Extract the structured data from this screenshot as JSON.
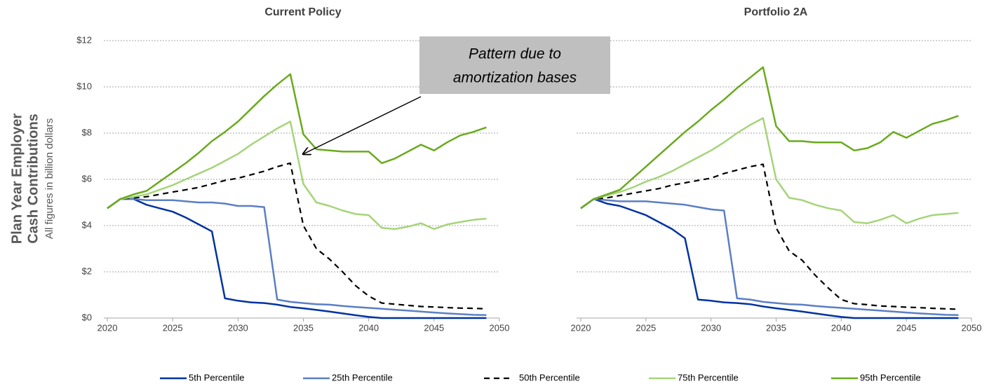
{
  "chart_data": [
    {
      "type": "line",
      "title": "Current Policy",
      "ylabel": [
        "Plan Year Employer",
        "Cash Contributions"
      ],
      "ylabel_note": "All figures in billion dollars",
      "annotation": [
        "Pattern due to",
        "amortization bases"
      ],
      "x": [
        2020,
        2021,
        2022,
        2023,
        2024,
        2025,
        2026,
        2027,
        2028,
        2029,
        2030,
        2031,
        2032,
        2033,
        2034,
        2035,
        2036,
        2037,
        2038,
        2039,
        2040,
        2041,
        2042,
        2043,
        2044,
        2045,
        2046,
        2047,
        2048,
        2049
      ],
      "xlim": [
        2020,
        2050
      ],
      "xticks": [
        2020,
        2025,
        2030,
        2035,
        2040,
        2045,
        2050
      ],
      "ylim": [
        0,
        12
      ],
      "yticks": [
        {
          "value": 0,
          "label": "$0"
        },
        {
          "value": 2,
          "label": "$2"
        },
        {
          "value": 4,
          "label": "$4"
        },
        {
          "value": 6,
          "label": "$6"
        },
        {
          "value": 8,
          "label": "$8"
        },
        {
          "value": 10,
          "label": "$10"
        },
        {
          "value": 12,
          "label": "$12"
        }
      ],
      "grid": true,
      "series": [
        {
          "name": "5th Percentile",
          "color": "#0033a0",
          "dashed": false,
          "values": [
            4.75,
            5.15,
            5.15,
            4.9,
            4.75,
            4.6,
            4.35,
            4.05,
            3.75,
            0.85,
            0.75,
            0.68,
            0.65,
            0.58,
            0.48,
            0.42,
            0.35,
            0.28,
            0.2,
            0.12,
            0.05,
            0,
            0,
            0,
            0,
            0,
            0,
            0,
            0,
            0
          ]
        },
        {
          "name": "25th Percentile",
          "color": "#5b7fc4",
          "dashed": false,
          "values": [
            4.75,
            5.15,
            5.15,
            5.1,
            5.1,
            5.1,
            5.05,
            5.0,
            5.0,
            4.95,
            4.85,
            4.85,
            4.8,
            0.8,
            0.7,
            0.65,
            0.6,
            0.58,
            0.52,
            0.48,
            0.44,
            0.4,
            0.36,
            0.32,
            0.28,
            0.24,
            0.2,
            0.17,
            0.14,
            0.13
          ]
        },
        {
          "name": "50th Percentile",
          "color": "#000000",
          "dashed": true,
          "values": [
            4.75,
            5.15,
            5.2,
            5.25,
            5.35,
            5.45,
            5.55,
            5.65,
            5.8,
            5.95,
            6.05,
            6.2,
            6.35,
            6.55,
            6.7,
            4.0,
            3.0,
            2.55,
            2.0,
            1.4,
            0.95,
            0.65,
            0.6,
            0.55,
            0.5,
            0.48,
            0.45,
            0.43,
            0.42,
            0.4
          ]
        },
        {
          "name": "75th Percentile",
          "color": "#a6d47a",
          "dashed": false,
          "values": [
            4.75,
            5.15,
            5.25,
            5.35,
            5.55,
            5.75,
            6.0,
            6.25,
            6.5,
            6.8,
            7.1,
            7.5,
            7.85,
            8.2,
            8.5,
            5.8,
            5.0,
            4.85,
            4.65,
            4.5,
            4.45,
            3.9,
            3.85,
            3.95,
            4.1,
            3.85,
            4.05,
            4.15,
            4.25,
            4.3
          ]
        },
        {
          "name": "95th Percentile",
          "color": "#6aaa1e",
          "dashed": false,
          "values": [
            4.75,
            5.15,
            5.35,
            5.5,
            5.9,
            6.3,
            6.7,
            7.15,
            7.65,
            8.05,
            8.5,
            9.05,
            9.6,
            10.1,
            10.55,
            7.95,
            7.3,
            7.25,
            7.2,
            7.2,
            7.2,
            6.7,
            6.9,
            7.2,
            7.5,
            7.25,
            7.6,
            7.9,
            8.05,
            8.25
          ]
        }
      ]
    },
    {
      "type": "line",
      "title": "Portfolio 2A",
      "x": [
        2020,
        2021,
        2022,
        2023,
        2024,
        2025,
        2026,
        2027,
        2028,
        2029,
        2030,
        2031,
        2032,
        2033,
        2034,
        2035,
        2036,
        2037,
        2038,
        2039,
        2040,
        2041,
        2042,
        2043,
        2044,
        2045,
        2046,
        2047,
        2048,
        2049
      ],
      "xlim": [
        2020,
        2050
      ],
      "xticks": [
        2020,
        2025,
        2030,
        2035,
        2040,
        2045,
        2050
      ],
      "ylim": [
        0,
        12
      ],
      "yticks": [
        0,
        2,
        4,
        6,
        8,
        10,
        12
      ],
      "grid": true,
      "series": [
        {
          "color": "#0033a0",
          "dashed": false,
          "values": [
            4.75,
            5.15,
            4.95,
            4.85,
            4.65,
            4.45,
            4.15,
            3.85,
            3.45,
            0.8,
            0.75,
            0.68,
            0.65,
            0.6,
            0.5,
            0.42,
            0.35,
            0.28,
            0.2,
            0.12,
            0.05,
            0,
            0,
            0,
            0,
            0,
            0,
            0,
            0,
            0
          ]
        },
        {
          "color": "#5b7fc4",
          "dashed": false,
          "values": [
            4.75,
            5.15,
            5.1,
            5.05,
            5.05,
            5.05,
            5.0,
            4.95,
            4.9,
            4.8,
            4.7,
            4.65,
            0.85,
            0.8,
            0.7,
            0.65,
            0.6,
            0.58,
            0.52,
            0.48,
            0.44,
            0.4,
            0.36,
            0.32,
            0.28,
            0.24,
            0.2,
            0.17,
            0.14,
            0.13
          ]
        },
        {
          "color": "#000000",
          "dashed": true,
          "values": [
            4.75,
            5.15,
            5.2,
            5.3,
            5.4,
            5.5,
            5.6,
            5.75,
            5.85,
            5.95,
            6.05,
            6.25,
            6.4,
            6.55,
            6.65,
            3.9,
            2.9,
            2.5,
            1.85,
            1.3,
            0.8,
            0.62,
            0.58,
            0.52,
            0.5,
            0.47,
            0.45,
            0.42,
            0.4,
            0.38
          ]
        },
        {
          "color": "#a6d47a",
          "dashed": false,
          "values": [
            4.75,
            5.15,
            5.3,
            5.45,
            5.65,
            5.9,
            6.1,
            6.35,
            6.65,
            6.95,
            7.25,
            7.6,
            8.0,
            8.35,
            8.65,
            6.0,
            5.2,
            5.1,
            4.9,
            4.75,
            4.65,
            4.15,
            4.1,
            4.25,
            4.45,
            4.1,
            4.3,
            4.45,
            4.5,
            4.55
          ]
        },
        {
          "color": "#6aaa1e",
          "dashed": false,
          "values": [
            4.75,
            5.15,
            5.35,
            5.55,
            6.05,
            6.55,
            7.05,
            7.55,
            8.05,
            8.5,
            9.0,
            9.45,
            9.95,
            10.4,
            10.85,
            8.3,
            7.65,
            7.65,
            7.6,
            7.6,
            7.6,
            7.25,
            7.35,
            7.6,
            8.05,
            7.8,
            8.1,
            8.4,
            8.55,
            8.75
          ]
        }
      ]
    }
  ]
}
